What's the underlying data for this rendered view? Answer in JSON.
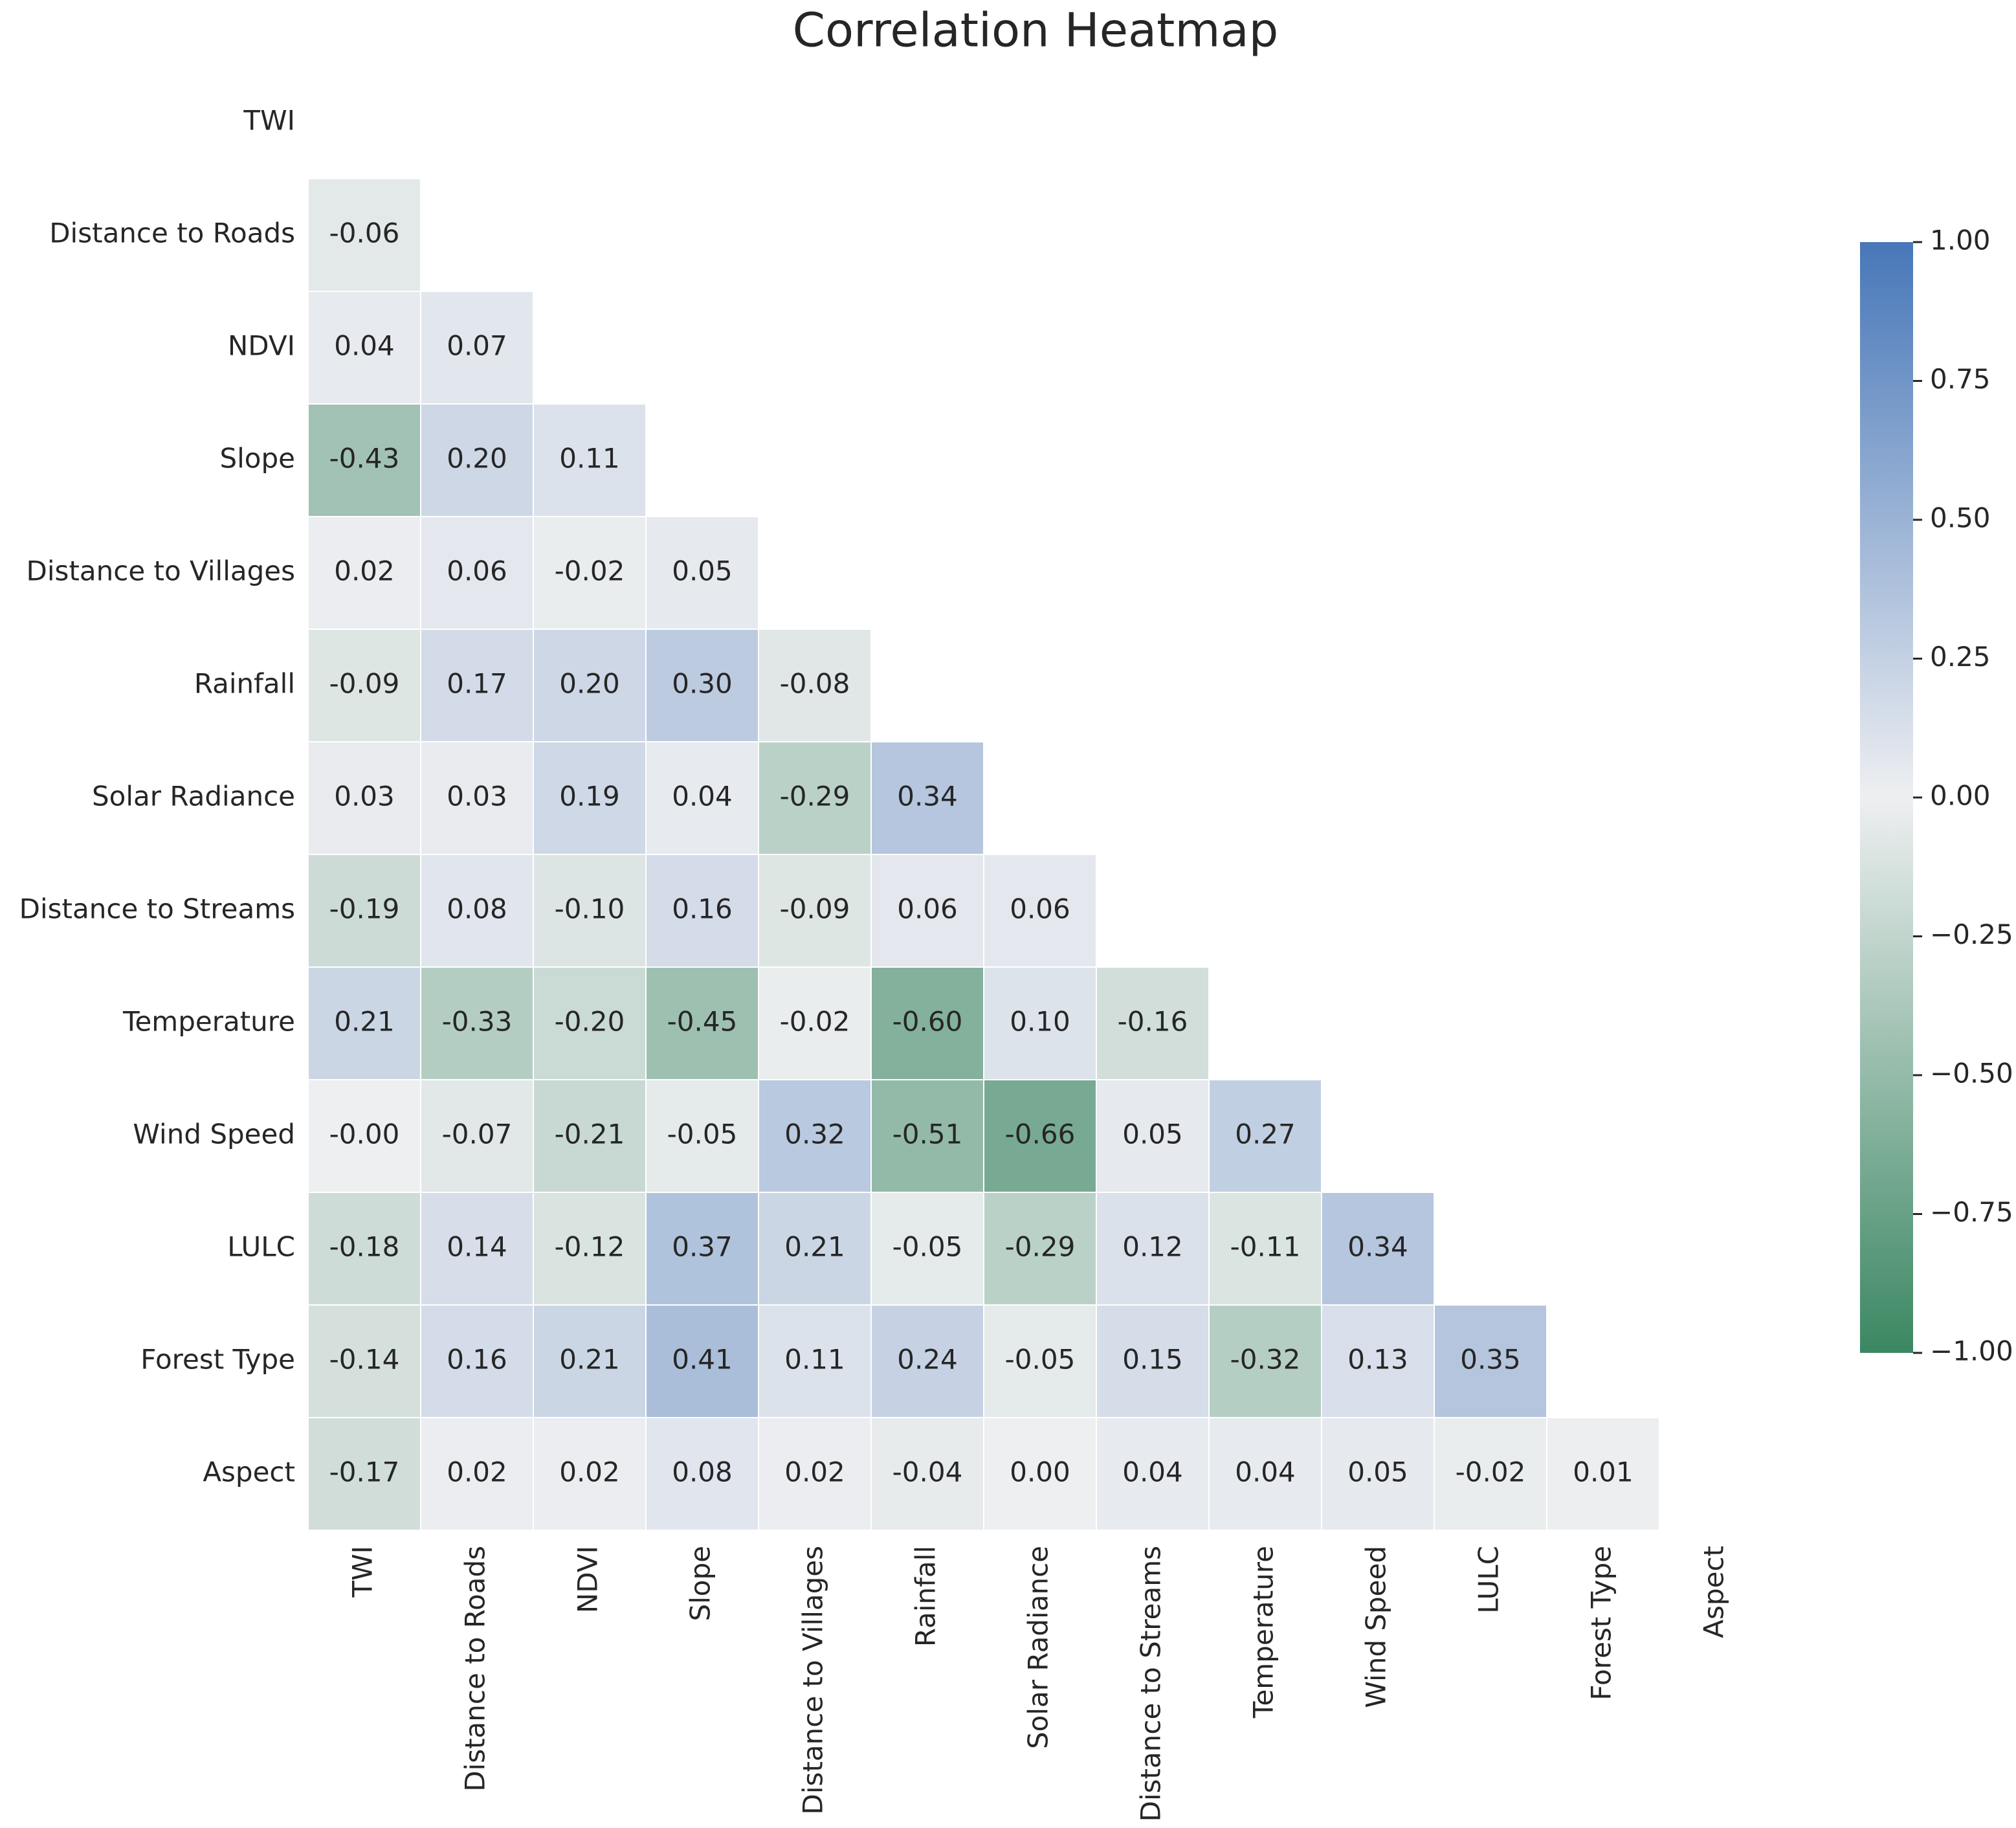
{
  "chart_data": {
    "type": "heatmap",
    "title": "Correlation Heatmap",
    "categories": [
      "TWI",
      "Distance to Roads",
      "NDVI",
      "Slope",
      "Distance to Villages",
      "Rainfall",
      "Solar Radiance",
      "Distance to Streams",
      "Temperature",
      "Wind Speed",
      "LULC",
      "Forest Type",
      "Aspect"
    ],
    "values": [
      [],
      [
        -0.06
      ],
      [
        0.04,
        0.07
      ],
      [
        -0.43,
        0.2,
        0.11
      ],
      [
        0.02,
        0.06,
        -0.02,
        0.05
      ],
      [
        -0.09,
        0.17,
        0.2,
        0.3,
        -0.08
      ],
      [
        0.03,
        0.03,
        0.19,
        0.04,
        -0.29,
        0.34
      ],
      [
        -0.19,
        0.08,
        -0.1,
        0.16,
        -0.09,
        0.06,
        0.06
      ],
      [
        0.21,
        -0.33,
        -0.2,
        -0.45,
        -0.02,
        -0.6,
        0.1,
        -0.16
      ],
      [
        0,
        -0.07,
        -0.21,
        -0.05,
        0.32,
        -0.51,
        -0.66,
        0.05,
        0.27
      ],
      [
        -0.18,
        0.14,
        -0.12,
        0.37,
        0.21,
        -0.05,
        -0.29,
        0.12,
        -0.11,
        0.34
      ],
      [
        -0.14,
        0.16,
        0.21,
        0.41,
        0.11,
        0.24,
        -0.05,
        0.15,
        -0.32,
        0.13,
        0.35
      ],
      [
        -0.17,
        0.02,
        0.02,
        0.08,
        0.02,
        -0.04,
        0,
        0.04,
        0.04,
        0.05,
        -0.02,
        0.01
      ]
    ],
    "value_labels": [
      [],
      [
        "-0.06"
      ],
      [
        "0.04",
        "0.07"
      ],
      [
        "-0.43",
        "0.20",
        "0.11"
      ],
      [
        "0.02",
        "0.06",
        "-0.02",
        "0.05"
      ],
      [
        "-0.09",
        "0.17",
        "0.20",
        "0.30",
        "-0.08"
      ],
      [
        "0.03",
        "0.03",
        "0.19",
        "0.04",
        "-0.29",
        "0.34"
      ],
      [
        "-0.19",
        "0.08",
        "-0.10",
        "0.16",
        "-0.09",
        "0.06",
        "0.06"
      ],
      [
        "0.21",
        "-0.33",
        "-0.20",
        "-0.45",
        "-0.02",
        "-0.60",
        "0.10",
        "-0.16"
      ],
      [
        "-0.00",
        "-0.07",
        "-0.21",
        "-0.05",
        "0.32",
        "-0.51",
        "-0.66",
        "0.05",
        "0.27"
      ],
      [
        "-0.18",
        "0.14",
        "-0.12",
        "0.37",
        "0.21",
        "-0.05",
        "-0.29",
        "0.12",
        "-0.11",
        "0.34"
      ],
      [
        "-0.14",
        "0.16",
        "0.21",
        "0.41",
        "0.11",
        "0.24",
        "-0.05",
        "0.15",
        "-0.32",
        "0.13",
        "0.35"
      ],
      [
        "-0.17",
        "0.02",
        "0.02",
        "0.08",
        "0.02",
        "-0.04",
        "0.00",
        "0.04",
        "0.04",
        "0.05",
        "-0.02",
        "0.01"
      ]
    ],
    "colormap": [
      "#3b8762",
      "#eeeff1",
      "#4777b9"
    ],
    "clim": [
      -1,
      1
    ],
    "cticks": [
      {
        "value": -1,
        "label": "−1.00"
      },
      {
        "value": -0.75,
        "label": "−0.75"
      },
      {
        "value": -0.5,
        "label": "−0.50"
      },
      {
        "value": -0.25,
        "label": "−0.25"
      },
      {
        "value": 0,
        "label": "0.00"
      },
      0.25,
      {
        "value": 0.5,
        "label": "0.50"
      },
      0.75,
      {
        "value": 1,
        "label": "1.00"
      }
    ]
  }
}
